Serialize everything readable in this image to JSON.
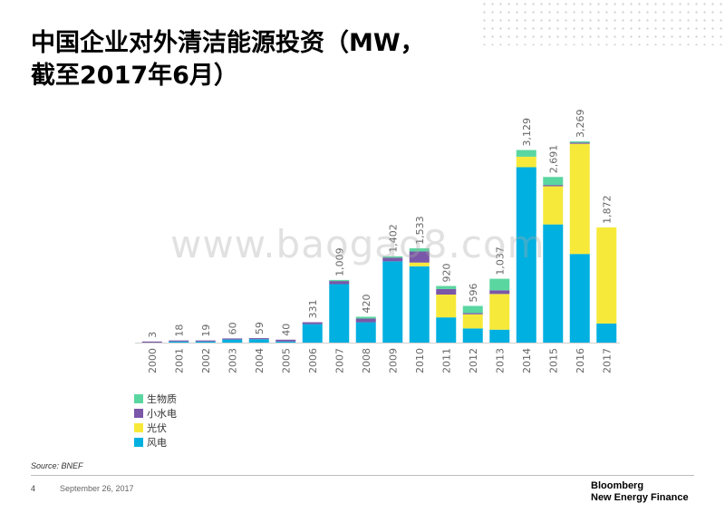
{
  "title_line1": "中国企业对外清洁能源投资（MW，",
  "title_line2": "截至2017年6月）",
  "watermark": "www.baogao8.com",
  "source": "Source:  BNEF",
  "page_number": "4",
  "date": "September 26, 2017",
  "brand_line1": "Bloomberg",
  "brand_line2": "New Energy Finance",
  "legend": [
    {
      "name": "生物质",
      "color": "#5ad6a0"
    },
    {
      "name": "小水电",
      "color": "#7a57a8"
    },
    {
      "name": "光伏",
      "color": "#f7e93a"
    },
    {
      "name": "风电",
      "color": "#00b0e0"
    }
  ],
  "chart_data": {
    "type": "bar",
    "stacked": true,
    "categories": [
      "2000",
      "2001",
      "2002",
      "2003",
      "2004",
      "2005",
      "2006",
      "2007",
      "2008",
      "2009",
      "2010",
      "2011",
      "2012",
      "2013",
      "2014",
      "2015",
      "2016",
      "2017"
    ],
    "totals": [
      3,
      18,
      19,
      60,
      59,
      40,
      331,
      1009,
      420,
      1402,
      1533,
      920,
      596,
      1037,
      3129,
      2691,
      3269,
      1872
    ],
    "total_labels": [
      "3",
      "18",
      "19",
      "60",
      "59",
      "40",
      "331",
      "1,009",
      "420",
      "1,402",
      "1,533",
      "920",
      "596",
      "1,037",
      "3,129",
      "2,691",
      "3,269",
      "1,872"
    ],
    "series": [
      {
        "name": "风电",
        "color": "#00b0e0",
        "values": [
          0,
          15,
          12,
          50,
          55,
          10,
          300,
          950,
          330,
          1320,
          1240,
          410,
          230,
          210,
          2850,
          1920,
          1440,
          310
        ]
      },
      {
        "name": "光伏",
        "color": "#f7e93a",
        "values": [
          0,
          0,
          0,
          0,
          0,
          0,
          0,
          0,
          0,
          0,
          60,
          370,
          230,
          580,
          170,
          620,
          1790,
          1562
        ]
      },
      {
        "name": "小水电",
        "color": "#7a57a8",
        "values": [
          3,
          3,
          7,
          10,
          4,
          30,
          31,
          50,
          60,
          60,
          180,
          90,
          20,
          60,
          0,
          20,
          20,
          0
        ]
      },
      {
        "name": "生物质",
        "color": "#5ad6a0",
        "values": [
          0,
          0,
          0,
          0,
          0,
          0,
          0,
          9,
          30,
          22,
          53,
          50,
          116,
          187,
          109,
          131,
          19,
          0
        ]
      }
    ],
    "ylim": [
      0,
      3300
    ],
    "grid": false,
    "legend_position": "bottom-left"
  }
}
